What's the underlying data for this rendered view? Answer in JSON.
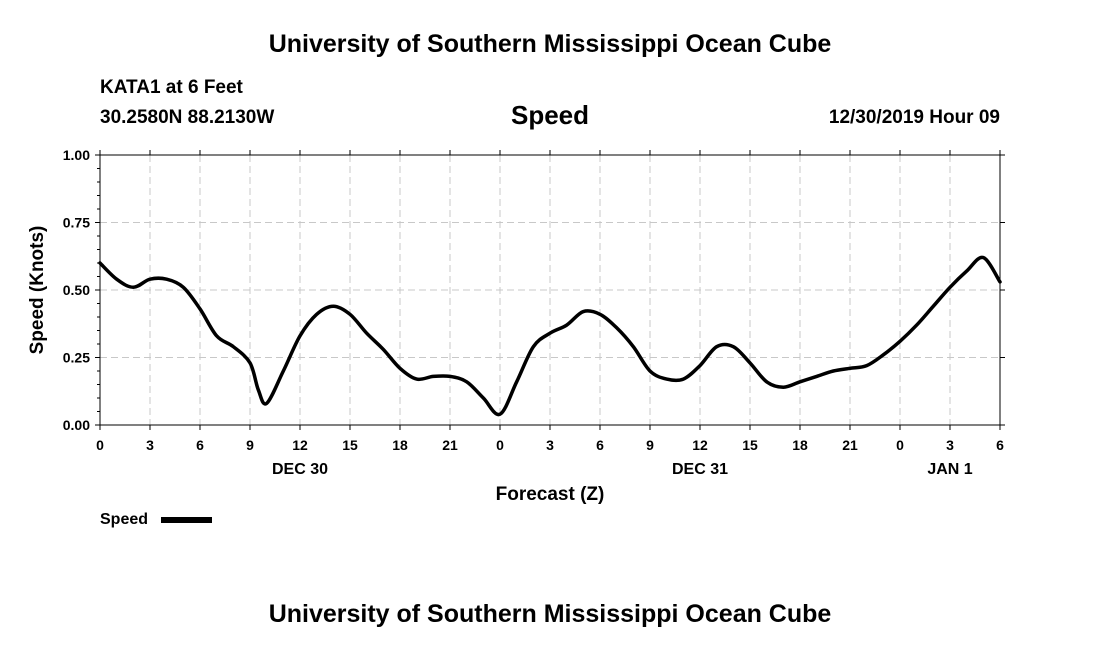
{
  "header": {
    "title": "University of Southern Mississippi Ocean Cube",
    "station": "KATA1 at 6 Feet",
    "coords": "30.2580N 88.2130W",
    "chart_title": "Speed",
    "datetime": "12/30/2019 Hour 09"
  },
  "footer": {
    "title": "University of Southern Mississippi Ocean Cube"
  },
  "colors": {
    "line": "#000000",
    "grid": "#c8c8c8",
    "axis": "#000000"
  },
  "chart_data": {
    "type": "line",
    "title": "Speed",
    "xlabel": "Forecast (Z)",
    "ylabel": "Speed (Knots)",
    "xlim": [
      0,
      54
    ],
    "ylim": [
      0,
      1
    ],
    "grid": true,
    "legend_position": "bottom-left",
    "x_ticks": [
      {
        "x": 0,
        "label": "0"
      },
      {
        "x": 3,
        "label": "3"
      },
      {
        "x": 6,
        "label": "6"
      },
      {
        "x": 9,
        "label": "9"
      },
      {
        "x": 12,
        "label": "12"
      },
      {
        "x": 15,
        "label": "15"
      },
      {
        "x": 18,
        "label": "18"
      },
      {
        "x": 21,
        "label": "21"
      },
      {
        "x": 24,
        "label": "0"
      },
      {
        "x": 27,
        "label": "3"
      },
      {
        "x": 30,
        "label": "6"
      },
      {
        "x": 33,
        "label": "9"
      },
      {
        "x": 36,
        "label": "12"
      },
      {
        "x": 39,
        "label": "15"
      },
      {
        "x": 42,
        "label": "18"
      },
      {
        "x": 45,
        "label": "21"
      },
      {
        "x": 48,
        "label": "0"
      },
      {
        "x": 51,
        "label": "3"
      },
      {
        "x": 54,
        "label": "6"
      }
    ],
    "date_labels": [
      {
        "x": 12,
        "label": "DEC 30"
      },
      {
        "x": 36,
        "label": "DEC 31"
      },
      {
        "x": 51,
        "label": "JAN 1"
      }
    ],
    "y_ticks": [
      {
        "y": 0,
        "label": "0.00"
      },
      {
        "y": 0.25,
        "label": "0.25"
      },
      {
        "y": 0.5,
        "label": "0.50"
      },
      {
        "y": 0.75,
        "label": "0.75"
      },
      {
        "y": 1.0,
        "label": "1.00"
      }
    ],
    "series": [
      {
        "name": "Speed",
        "x": [
          0,
          1,
          2,
          3,
          4,
          5,
          6,
          7,
          8,
          9,
          9.5,
          10,
          11,
          12,
          13,
          14,
          15,
          16,
          17,
          18,
          19,
          20,
          21,
          22,
          23,
          24,
          25,
          26,
          27,
          28,
          29,
          30,
          31,
          32,
          33,
          34,
          35,
          36,
          37,
          38,
          39,
          40,
          41,
          42,
          43,
          44,
          45,
          46,
          47,
          48,
          49,
          50,
          51,
          52,
          53,
          54
        ],
        "values": [
          0.6,
          0.54,
          0.51,
          0.54,
          0.54,
          0.51,
          0.43,
          0.33,
          0.29,
          0.23,
          0.13,
          0.08,
          0.2,
          0.33,
          0.41,
          0.44,
          0.41,
          0.34,
          0.28,
          0.21,
          0.17,
          0.18,
          0.18,
          0.16,
          0.1,
          0.04,
          0.16,
          0.29,
          0.34,
          0.37,
          0.42,
          0.41,
          0.36,
          0.29,
          0.2,
          0.17,
          0.17,
          0.22,
          0.29,
          0.29,
          0.23,
          0.16,
          0.14,
          0.16,
          0.18,
          0.2,
          0.21,
          0.22,
          0.26,
          0.31,
          0.37,
          0.44,
          0.51,
          0.57,
          0.62,
          0.53
        ]
      }
    ]
  }
}
